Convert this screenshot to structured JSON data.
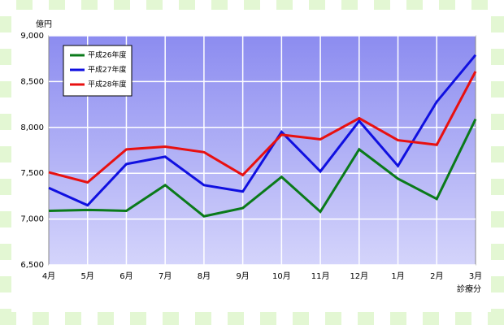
{
  "chart_data": {
    "type": "line",
    "y_label": "億円",
    "x_label": "診療分",
    "categories": [
      "4月",
      "5月",
      "6月",
      "7月",
      "8月",
      "9月",
      "10月",
      "11月",
      "12月",
      "1月",
      "2月",
      "3月"
    ],
    "series": [
      {
        "name": "平成26年度",
        "color": "#0a7a1a",
        "values": [
          7090,
          7100,
          7090,
          7370,
          7030,
          7120,
          7460,
          7080,
          7760,
          7440,
          7220,
          8090
        ]
      },
      {
        "name": "平成27年度",
        "color": "#1010e0",
        "values": [
          7340,
          7150,
          7600,
          7680,
          7370,
          7300,
          7950,
          7520,
          8070,
          7580,
          8280,
          8790
        ]
      },
      {
        "name": "平成28年度",
        "color": "#e81010",
        "values": [
          7510,
          7400,
          7760,
          7790,
          7730,
          7480,
          7920,
          7870,
          8100,
          7860,
          7810,
          8610
        ]
      }
    ],
    "ylim": [
      6500,
      9000
    ],
    "yticks": [
      {
        "value": 6500,
        "label": "6,500"
      },
      {
        "value": 7000,
        "label": "7,000"
      },
      {
        "value": 7500,
        "label": "7,500"
      },
      {
        "value": 8000,
        "label": "8,000"
      },
      {
        "value": 8500,
        "label": "8,500"
      },
      {
        "value": 9000,
        "label": "9,000"
      }
    ],
    "grid": true,
    "legend": "top-left"
  }
}
